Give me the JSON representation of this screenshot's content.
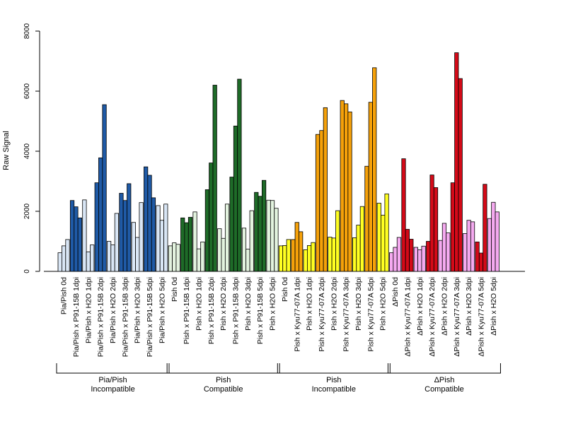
{
  "chart_data": {
    "type": "bar",
    "ylabel": "Raw Signal",
    "ylim": [
      0,
      8000
    ],
    "yticks": [
      "0",
      "2000",
      "4000",
      "6000",
      "8000"
    ],
    "grid": false,
    "categories": [
      "Pia/Pish 0d",
      "Pia/Pish x P91-15B 1dpi",
      "Pia/Pish x H2O 1dpi",
      "Pia/Pish x P91-15B 2dpi",
      "Pia/Pish x H2O 2dpi",
      "Pia/Pish x P91-15B 3dpi",
      "Pia/Pish x H2O 3dpi",
      "Pia/Pish x P91-15B 5dpi",
      "Pia/Pish x H2O 5dpi",
      "Pish 0d",
      "Pish x P91-15B 1dpi",
      "Pish x H2O 1dpi",
      "Pish x P91-15B 2dpi",
      "Pish x H2O 2dpi",
      "Pish x P91-15B 3dpi",
      "Pish x H2O 3dpi",
      "Pish x P91-15B 5dpi",
      "Pish x H2O 5dpi",
      "Pish 0d",
      "Pish x Kyu77-07A 1dpi",
      "Pish x H2O 1dpi",
      "Pish x Kyu77-07A 2dpi",
      "Pish x H2O 2dpi",
      "Pish x Kyu77-07A 3dpi",
      "Pish x H2O 3dpi",
      "Pish x Kyu77-07A 5dpi",
      "Pish x H2O 5dpi",
      "ΔPish 0d",
      "ΔPish x Kyu77-07A 1dpi",
      "ΔPish x H2O 1dpi",
      "ΔPish x Kyu77-07A 2dpi",
      "ΔPish x H2O 2dpi",
      "ΔPish x Kyu77-07A 3dpi",
      "ΔPish x H2O 3dpi",
      "ΔPish x Kyu77-07A 5dpi",
      "ΔPish x H2O 5dpi"
    ],
    "groups": [
      {
        "label_line1": "Pia/Pish",
        "label_line2": "Incompatible",
        "start": 0,
        "end": 8
      },
      {
        "label_line1": "Pish",
        "label_line2": "Compatible",
        "start": 9,
        "end": 17
      },
      {
        "label_line1": "Pish",
        "label_line2": "Incompatible",
        "start": 18,
        "end": 26
      },
      {
        "label_line1": "ΔPish",
        "label_line2": "Compatible",
        "start": 27,
        "end": 35
      }
    ],
    "colors": {
      "blue": "#1f5aa6",
      "lightblue": "#d9e6f5",
      "green": "#1e6b28",
      "lightgreen": "#e3f3df",
      "orange": "#f5a10a",
      "yellow": "#ffff22",
      "red": "#d40a18",
      "pink": "#f5aaf0"
    },
    "bar_colors": [
      "lightblue",
      "blue",
      "lightblue",
      "blue",
      "lightblue",
      "blue",
      "lightblue",
      "blue",
      "lightblue",
      "lightgreen",
      "green",
      "lightgreen",
      "green",
      "lightgreen",
      "green",
      "lightgreen",
      "green",
      "lightgreen",
      "yellow",
      "orange",
      "yellow",
      "orange",
      "yellow",
      "orange",
      "yellow",
      "orange",
      "yellow",
      "pink",
      "red",
      "pink",
      "red",
      "pink",
      "red",
      "pink",
      "red",
      "pink"
    ],
    "values": [
      [
        620,
        850,
        1060
      ],
      [
        2360,
        2150,
        1780
      ],
      [
        2380,
        650,
        880
      ],
      [
        2950,
        3780,
        5550
      ],
      [
        1000,
        880,
        1930
      ],
      [
        2600,
        2360,
        2920
      ],
      [
        1630,
        1130,
        2290
      ],
      [
        3480,
        3200,
        2450
      ],
      [
        2190,
        1700,
        2240
      ],
      [
        850,
        950,
        900
      ],
      [
        1780,
        1620,
        1800
      ],
      [
        1980,
        750,
        980
      ],
      [
        2720,
        3610,
        6200
      ],
      [
        1420,
        1100,
        2240
      ],
      [
        3140,
        4840,
        6400
      ],
      [
        1440,
        740,
        2020
      ],
      [
        2630,
        2500,
        3030
      ],
      [
        2370,
        2360,
        2100
      ],
      [
        850,
        860,
        1060
      ],
      [
        1060,
        1630,
        1320
      ],
      [
        720,
        860,
        960
      ],
      [
        4560,
        4690,
        5450
      ],
      [
        1140,
        1110,
        2020
      ],
      [
        5690,
        5580,
        5310
      ],
      [
        1120,
        1540,
        2160
      ],
      [
        3500,
        5630,
        6780
      ],
      [
        2270,
        1870,
        2580
      ],
      [
        620,
        800,
        1130
      ],
      [
        3750,
        1400,
        1070
      ],
      [
        800,
        720,
        840
      ],
      [
        1000,
        3210,
        2790
      ],
      [
        1030,
        1600,
        1280
      ],
      [
        2950,
        7280,
        6420
      ],
      [
        1260,
        1700,
        1650
      ],
      [
        980,
        610,
        2900
      ],
      [
        1760,
        2300,
        1980
      ]
    ]
  }
}
